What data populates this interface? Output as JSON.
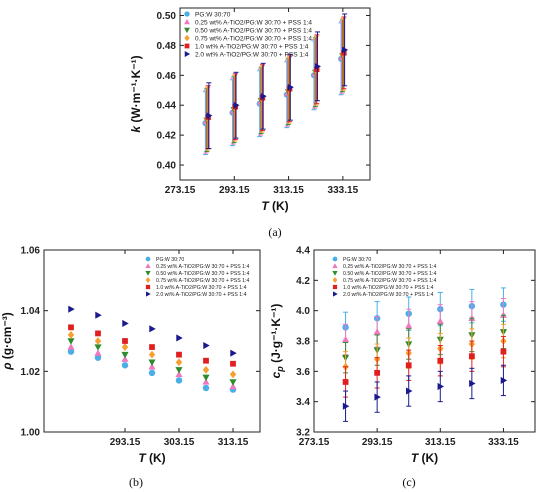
{
  "chart_data": [
    {
      "id": "a",
      "type": "scatter",
      "caption": "(a)",
      "xlabel_main": "T",
      "xlabel_unit": " (K)",
      "ylabel_main": "k",
      "ylabel_unit": " (W·m⁻¹·K⁻¹)",
      "xlim": [
        273.15,
        343.15
      ],
      "ylim": [
        0.39,
        0.505
      ],
      "xticks": [
        273.15,
        293.15,
        313.15,
        333.15
      ],
      "xtick_labels": [
        "273.15",
        "293.15",
        "313.15",
        "333.15"
      ],
      "yticks": [
        0.4,
        0.42,
        0.44,
        0.46,
        0.48,
        0.5
      ],
      "ytick_labels": [
        "0.40",
        "0.42",
        "0.44",
        "0.46",
        "0.48",
        "0.50"
      ],
      "legend_position": "top-left",
      "error_bars": true,
      "x": [
        283.15,
        293.15,
        303.15,
        313.15,
        323.15,
        333.15
      ],
      "series": [
        {
          "name": "PG:W 30:70",
          "marker": "circle",
          "color": "#4aaee8",
          "values": [
            0.428,
            0.435,
            0.441,
            0.447,
            0.46,
            0.471
          ],
          "errors": [
            0.021,
            0.022,
            0.022,
            0.022,
            0.023,
            0.024
          ]
        },
        {
          "name": "0.25 wt% A-TiO2/PG:W 30:70 + PSS 1:4",
          "marker": "triangle-up",
          "color": "#f078c0",
          "values": [
            0.429,
            0.436,
            0.442,
            0.448,
            0.461,
            0.472
          ],
          "errors": [
            0.021,
            0.022,
            0.022,
            0.022,
            0.023,
            0.024
          ]
        },
        {
          "name": "0.50 wt% A-TiO2/PG:W 30:70 + PSS 1:4",
          "marker": "triangle-down",
          "color": "#2e8b2e",
          "values": [
            0.43,
            0.437,
            0.443,
            0.449,
            0.462,
            0.473
          ],
          "errors": [
            0.021,
            0.022,
            0.022,
            0.022,
            0.023,
            0.024
          ]
        },
        {
          "name": "0.75 wt% A-TiO2/PG:W 30:70 + PSS 1:4",
          "marker": "diamond",
          "color": "#f5a030",
          "values": [
            0.431,
            0.438,
            0.444,
            0.45,
            0.463,
            0.474
          ],
          "errors": [
            0.021,
            0.022,
            0.022,
            0.022,
            0.023,
            0.024
          ]
        },
        {
          "name": "1.0 wt% A-TiO2/PG:W 30:70 + PSS 1:4",
          "marker": "square",
          "color": "#e02020",
          "values": [
            0.432,
            0.439,
            0.445,
            0.451,
            0.464,
            0.475
          ],
          "errors": [
            0.021,
            0.022,
            0.022,
            0.022,
            0.023,
            0.024
          ]
        },
        {
          "name": "2.0 wt% A-TiO2/PG:W 30:70 + PSS 1:4",
          "marker": "triangle-right",
          "color": "#1a1a8c",
          "values": [
            0.433,
            0.44,
            0.446,
            0.452,
            0.466,
            0.477
          ],
          "errors": [
            0.022,
            0.022,
            0.022,
            0.022,
            0.023,
            0.024
          ]
        }
      ]
    },
    {
      "id": "b",
      "type": "scatter",
      "caption": "(b)",
      "xlabel_main": "T",
      "xlabel_unit": " (K)",
      "ylabel_main": "ρ",
      "ylabel_unit": " (g·cm⁻³)",
      "xlim": [
        278.15,
        318.15
      ],
      "ylim": [
        1.0,
        1.06
      ],
      "xticks": [
        293.15,
        303.15,
        313.15
      ],
      "xtick_labels": [
        "293.15",
        "303.15",
        "313.15"
      ],
      "yticks": [
        1.0,
        1.02,
        1.04,
        1.06
      ],
      "ytick_labels": [
        "1.00",
        "1.02",
        "1.04",
        "1.06"
      ],
      "legend_position": "top-right",
      "error_bars": false,
      "x": [
        283.15,
        288.15,
        293.15,
        298.15,
        303.15,
        308.15,
        313.15
      ],
      "series": [
        {
          "name": "PG:W 30:70",
          "marker": "circle",
          "color": "#4aaee8",
          "values": [
            1.0265,
            1.0245,
            1.022,
            1.0195,
            1.017,
            1.0145,
            1.014
          ]
        },
        {
          "name": "0.25 wt% A-TiO2/PG:W 30:70 + PSS 1:4",
          "marker": "triangle-up",
          "color": "#f078c0",
          "values": [
            1.028,
            1.026,
            1.024,
            1.0215,
            1.019,
            1.0165,
            1.015
          ]
        },
        {
          "name": "0.50 wt% A-TiO2/PG:W 30:70 + PSS 1:4",
          "marker": "triangle-down",
          "color": "#2e8b2e",
          "values": [
            1.03,
            1.028,
            1.0255,
            1.023,
            1.0205,
            1.018,
            1.0165
          ]
        },
        {
          "name": "0.75 wt% A-TiO2/PG:W 30:70 + PSS 1:4",
          "marker": "diamond",
          "color": "#f5a030",
          "values": [
            1.032,
            1.03,
            1.028,
            1.0255,
            1.023,
            1.0205,
            1.019
          ]
        },
        {
          "name": "1.0 wt% A-TiO2/PG:W 30:70 + PSS 1:4",
          "marker": "square",
          "color": "#e02020",
          "values": [
            1.0345,
            1.0325,
            1.03,
            1.028,
            1.0255,
            1.0235,
            1.0225
          ]
        },
        {
          "name": "2.0 wt% A-TiO2/PG:W 30:70 + PSS 1:4",
          "marker": "triangle-right",
          "color": "#1a1a8c",
          "values": [
            1.0405,
            1.0385,
            1.0358,
            1.034,
            1.031,
            1.0285,
            1.026
          ]
        }
      ]
    },
    {
      "id": "c",
      "type": "scatter",
      "caption": "(c)",
      "xlabel_main": "T",
      "xlabel_unit": " (K)",
      "ylabel_main": "c",
      "ylabel_sub": "p",
      "ylabel_unit": " (J·g⁻¹·K⁻¹)",
      "xlim": [
        273.15,
        343.15
      ],
      "ylim": [
        3.2,
        4.4
      ],
      "xticks": [
        273.15,
        293.15,
        313.15,
        333.15
      ],
      "xtick_labels": [
        "273.15",
        "293.15",
        "313.15",
        "333.15"
      ],
      "yticks": [
        3.2,
        3.4,
        3.6,
        3.8,
        4.0,
        4.2,
        4.4
      ],
      "ytick_labels": [
        "3.2",
        "3.4",
        "3.6",
        "3.8",
        "4.0",
        "4.2",
        "4.4"
      ],
      "legend_position": "top-left",
      "error_bars": true,
      "x": [
        283.15,
        293.15,
        303.15,
        313.15,
        323.15,
        333.15
      ],
      "series": [
        {
          "name": "PG:W 30:70",
          "marker": "circle",
          "color": "#4aaee8",
          "values": [
            3.89,
            3.95,
            3.98,
            4.01,
            4.03,
            4.04
          ],
          "errors": [
            0.1,
            0.11,
            0.11,
            0.11,
            0.11,
            0.11
          ]
        },
        {
          "name": "0.25 wt% A-TiO2/PG:W 30:70 + PSS 1:4",
          "marker": "triangle-up",
          "color": "#f078c0",
          "values": [
            3.81,
            3.86,
            3.9,
            3.93,
            3.95,
            3.97
          ],
          "errors": [
            0.1,
            0.1,
            0.11,
            0.11,
            0.11,
            0.11
          ]
        },
        {
          "name": "0.50 wt% A-TiO2/PG:W 30:70 + PSS 1:4",
          "marker": "triangle-down",
          "color": "#2e8b2e",
          "values": [
            3.69,
            3.74,
            3.78,
            3.81,
            3.84,
            3.86
          ],
          "errors": [
            0.1,
            0.1,
            0.1,
            0.1,
            0.11,
            0.11
          ]
        },
        {
          "name": "0.75 wt% A-TiO2/PG:W 30:70 + PSS 1:4",
          "marker": "diamond",
          "color": "#f5a030",
          "values": [
            3.63,
            3.68,
            3.72,
            3.75,
            3.78,
            3.8
          ],
          "errors": [
            0.1,
            0.1,
            0.1,
            0.1,
            0.1,
            0.11
          ]
        },
        {
          "name": "1.0 wt% A-TiO2/PG:W 30:70 + PSS 1:4",
          "marker": "square",
          "color": "#e02020",
          "values": [
            3.53,
            3.59,
            3.64,
            3.67,
            3.7,
            3.73
          ],
          "errors": [
            0.1,
            0.1,
            0.1,
            0.1,
            0.1,
            0.1
          ]
        },
        {
          "name": "2.0 wt% A-TiO2/PG:W 30:70 + PSS 1:4",
          "marker": "triangle-right",
          "color": "#1a1a8c",
          "values": [
            3.37,
            3.43,
            3.47,
            3.5,
            3.52,
            3.54
          ],
          "errors": [
            0.1,
            0.1,
            0.1,
            0.1,
            0.1,
            0.1
          ]
        }
      ]
    }
  ]
}
